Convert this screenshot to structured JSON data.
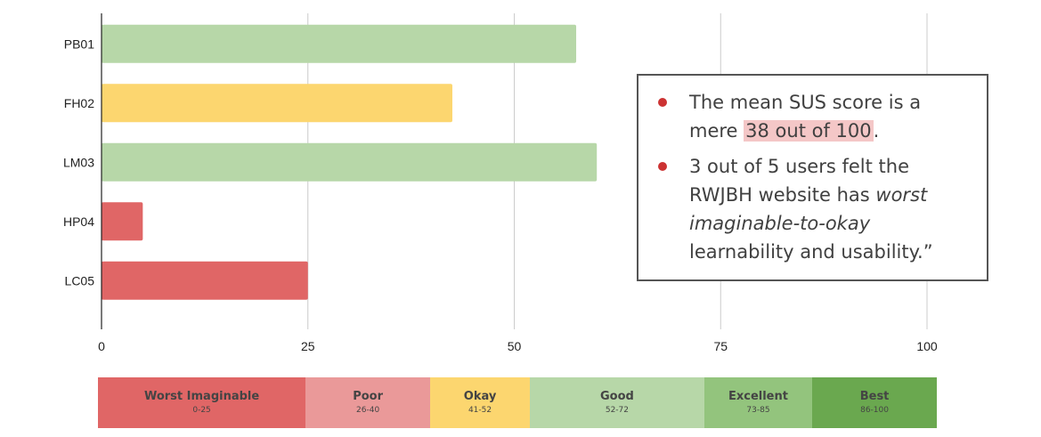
{
  "chart_data": {
    "type": "bar",
    "orientation": "horizontal",
    "categories": [
      "PB01",
      "FH02",
      "LM03",
      "HP04",
      "LC05"
    ],
    "values": [
      57.5,
      42.5,
      60,
      5,
      25
    ],
    "bar_colors": [
      "#b7d7a8",
      "#fcd66f",
      "#b7d7a8",
      "#e06666",
      "#e06666"
    ],
    "xlim": [
      0,
      100
    ],
    "xticks": [
      "0",
      "25",
      "50",
      "75",
      "100"
    ],
    "grid": true,
    "title": "",
    "xlabel": "",
    "ylabel": ""
  },
  "callout": {
    "bullet_color": "#cc3333",
    "highlight_color": "#f4c7c7",
    "point1_before": "The mean SUS score is a mere ",
    "point1_highlight": "38 out of 100",
    "point1_after": ".",
    "point2_before": "3 out of 5 users felt the RWJBH website has ",
    "point2_emphasis": "worst imaginable-to-okay",
    "point2_after": " learnability and usability.”"
  },
  "scale": [
    {
      "label": "Worst Imaginable",
      "range": "0-25",
      "color": "#e06666"
    },
    {
      "label": "Poor",
      "range": "26-40",
      "color": "#ea9999"
    },
    {
      "label": "Okay",
      "range": "41-52",
      "color": "#fcd66f"
    },
    {
      "label": "Good",
      "range": "52-72",
      "color": "#b7d7a8"
    },
    {
      "label": "Excellent",
      "range": "73-85",
      "color": "#93c47d"
    },
    {
      "label": "Best",
      "range": "86-100",
      "color": "#6aa84f"
    }
  ]
}
